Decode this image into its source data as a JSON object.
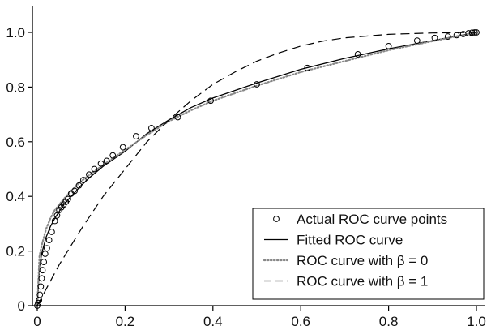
{
  "chart_data": {
    "type": "line",
    "title": "",
    "xlabel": "",
    "ylabel": "",
    "xlim": [
      0,
      1
    ],
    "ylim": [
      0,
      1
    ],
    "x_ticks": [
      0,
      0.2,
      0.4,
      0.6,
      0.8,
      1.0
    ],
    "x_tick_labels": [
      "0",
      "0.2",
      "0.4",
      "0.6",
      "0.8",
      "1.0"
    ],
    "y_ticks": [
      0,
      0.2,
      0.4,
      0.6,
      0.8,
      1.0
    ],
    "y_tick_labels": [
      "0",
      "0.2",
      "0.4",
      "0.6",
      "0.8",
      "1.0"
    ],
    "grid": false,
    "legend_position": "bottom-right",
    "series": [
      {
        "name": "Actual ROC curve points",
        "style": "circle-markers",
        "color": "#000000",
        "points": [
          [
            0.0,
            0.0
          ],
          [
            0.002,
            0.01
          ],
          [
            0.004,
            0.02
          ],
          [
            0.006,
            0.04
          ],
          [
            0.008,
            0.07
          ],
          [
            0.01,
            0.1
          ],
          [
            0.012,
            0.13
          ],
          [
            0.015,
            0.16
          ],
          [
            0.018,
            0.19
          ],
          [
            0.022,
            0.21
          ],
          [
            0.027,
            0.24
          ],
          [
            0.033,
            0.27
          ],
          [
            0.04,
            0.31
          ],
          [
            0.045,
            0.33
          ],
          [
            0.05,
            0.35
          ],
          [
            0.055,
            0.36
          ],
          [
            0.06,
            0.37
          ],
          [
            0.065,
            0.38
          ],
          [
            0.07,
            0.39
          ],
          [
            0.077,
            0.41
          ],
          [
            0.085,
            0.42
          ],
          [
            0.095,
            0.44
          ],
          [
            0.105,
            0.46
          ],
          [
            0.118,
            0.48
          ],
          [
            0.13,
            0.5
          ],
          [
            0.145,
            0.52
          ],
          [
            0.158,
            0.53
          ],
          [
            0.172,
            0.55
          ],
          [
            0.195,
            0.58
          ],
          [
            0.225,
            0.62
          ],
          [
            0.26,
            0.65
          ],
          [
            0.32,
            0.69
          ],
          [
            0.395,
            0.75
          ],
          [
            0.5,
            0.81
          ],
          [
            0.615,
            0.87
          ],
          [
            0.73,
            0.92
          ],
          [
            0.8,
            0.95
          ],
          [
            0.865,
            0.97
          ],
          [
            0.905,
            0.98
          ],
          [
            0.935,
            0.985
          ],
          [
            0.955,
            0.99
          ],
          [
            0.97,
            0.994
          ],
          [
            0.982,
            0.997
          ],
          [
            0.99,
            0.999
          ],
          [
            0.996,
            1.0
          ],
          [
            1.0,
            1.0
          ]
        ]
      },
      {
        "name": "Fitted ROC curve",
        "style": "solid",
        "color": "#000000",
        "points": [
          [
            0.0,
            0.0
          ],
          [
            0.005,
            0.14
          ],
          [
            0.01,
            0.19
          ],
          [
            0.02,
            0.25
          ],
          [
            0.03,
            0.29
          ],
          [
            0.04,
            0.32
          ],
          [
            0.05,
            0.345
          ],
          [
            0.06,
            0.37
          ],
          [
            0.08,
            0.405
          ],
          [
            0.1,
            0.44
          ],
          [
            0.12,
            0.47
          ],
          [
            0.15,
            0.51
          ],
          [
            0.2,
            0.565
          ],
          [
            0.25,
            0.63
          ],
          [
            0.3,
            0.68
          ],
          [
            0.35,
            0.725
          ],
          [
            0.4,
            0.76
          ],
          [
            0.5,
            0.815
          ],
          [
            0.6,
            0.865
          ],
          [
            0.7,
            0.905
          ],
          [
            0.8,
            0.94
          ],
          [
            0.9,
            0.97
          ],
          [
            1.0,
            1.0
          ]
        ]
      },
      {
        "name": "ROC curve with β = 0",
        "style": "dotted",
        "color": "#888888",
        "points": [
          [
            0.0,
            0.0
          ],
          [
            0.005,
            0.18
          ],
          [
            0.01,
            0.22
          ],
          [
            0.02,
            0.28
          ],
          [
            0.03,
            0.32
          ],
          [
            0.04,
            0.35
          ],
          [
            0.05,
            0.37
          ],
          [
            0.06,
            0.39
          ],
          [
            0.08,
            0.425
          ],
          [
            0.1,
            0.455
          ],
          [
            0.12,
            0.48
          ],
          [
            0.15,
            0.515
          ],
          [
            0.2,
            0.57
          ],
          [
            0.25,
            0.625
          ],
          [
            0.3,
            0.675
          ],
          [
            0.35,
            0.715
          ],
          [
            0.4,
            0.75
          ],
          [
            0.5,
            0.805
          ],
          [
            0.6,
            0.855
          ],
          [
            0.7,
            0.895
          ],
          [
            0.8,
            0.935
          ],
          [
            0.9,
            0.968
          ],
          [
            1.0,
            1.0
          ]
        ]
      },
      {
        "name": "ROC curve with β = 1",
        "style": "dashed",
        "color": "#000000",
        "points": [
          [
            0.0,
            0.0
          ],
          [
            0.05,
            0.15
          ],
          [
            0.1,
            0.28
          ],
          [
            0.15,
            0.4
          ],
          [
            0.2,
            0.5
          ],
          [
            0.25,
            0.6
          ],
          [
            0.3,
            0.68
          ],
          [
            0.35,
            0.75
          ],
          [
            0.4,
            0.81
          ],
          [
            0.45,
            0.855
          ],
          [
            0.5,
            0.895
          ],
          [
            0.55,
            0.925
          ],
          [
            0.6,
            0.95
          ],
          [
            0.65,
            0.968
          ],
          [
            0.7,
            0.98
          ],
          [
            0.8,
            0.993
          ],
          [
            0.9,
            0.998
          ],
          [
            1.0,
            1.0
          ]
        ]
      }
    ]
  }
}
